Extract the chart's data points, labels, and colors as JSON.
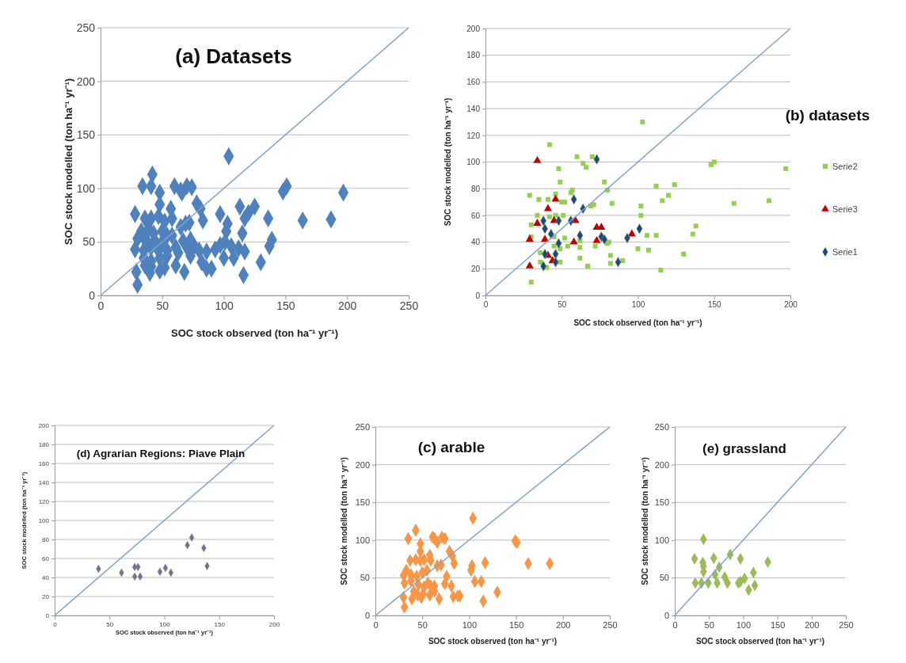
{
  "chart_data": [
    {
      "type": "scatter",
      "title": "(a) Datasets",
      "xlabel": "SOC stock observed (ton ha⁻¹ yr⁻¹)",
      "ylabel": "SOC stock modelled (ton ha⁻¹ yr⁻¹)",
      "xlim": [
        0,
        250
      ],
      "ylim": [
        0,
        250
      ],
      "xticks": [
        0,
        50,
        100,
        150,
        200,
        250
      ],
      "yticks": [
        0,
        50,
        100,
        150,
        200,
        250
      ],
      "grid": "y",
      "series": [
        {
          "type": "scatter",
          "marker": "diamond",
          "color": "#4f81bd",
          "x": [
            104,
            42,
            34,
            41,
            60,
            65,
            70,
            74,
            66,
            48,
            48,
            78,
            81,
            151,
            148,
            197,
            28,
            36,
            41,
            47,
            52,
            57,
            58,
            65,
            69,
            72,
            83,
            97,
            113,
            125,
            120,
            117,
            136,
            164,
            187,
            103,
            102,
            115,
            33,
            39,
            43,
            50,
            54,
            58,
            30,
            36,
            39,
            44,
            50,
            67,
            73,
            76,
            139,
            137,
            28,
            35,
            41,
            47,
            54,
            61,
            63,
            71,
            73,
            80,
            86,
            93,
            97,
            101,
            106,
            112,
            117,
            35,
            41,
            48,
            54,
            61,
            68,
            82,
            86,
            90,
            100,
            108,
            130,
            116,
            29,
            40,
            48,
            30,
            36,
            41,
            52
          ],
          "values": [
            130,
            113,
            102,
            102,
            102,
            98,
            102,
            101,
            96,
            96,
            85,
            86,
            81,
            102,
            97,
            96,
            76,
            72,
            72,
            74,
            69,
            81,
            72,
            64,
            67,
            68,
            70,
            76,
            83,
            83,
            77,
            72,
            72,
            70,
            71,
            67,
            60,
            58,
            60,
            62,
            58,
            60,
            56,
            56,
            53,
            52,
            48,
            51,
            50,
            51,
            52,
            46,
            52,
            46,
            43,
            42,
            45,
            42,
            42,
            45,
            40,
            43,
            37,
            42,
            41,
            43,
            47,
            50,
            46,
            44,
            41,
            35,
            32,
            35,
            37,
            28,
            22,
            31,
            25,
            25,
            35,
            35,
            31,
            19,
            22,
            21,
            23,
            10,
            28,
            27,
            26
          ]
        },
        {
          "type": "line",
          "marker": "none",
          "line_style": "solid",
          "color": "#7ea3d3",
          "x": [
            0,
            250
          ],
          "values": [
            0,
            250
          ]
        }
      ]
    },
    {
      "type": "scatter",
      "title": "(b) datasets",
      "xlabel": "SOC stock observed (ton ha⁻¹ yr⁻¹)",
      "ylabel": "SOC stock modelled (ton ha⁻¹ yr⁻¹)",
      "xlim": [
        0,
        200
      ],
      "ylim": [
        0,
        200
      ],
      "xticks": [
        0,
        50,
        100,
        150,
        200
      ],
      "yticks": [
        0,
        20,
        40,
        60,
        80,
        100,
        120,
        140,
        160,
        180,
        200
      ],
      "grid": "y",
      "legend": "right",
      "series": [
        {
          "name": "Serie2",
          "type": "scatter",
          "marker": "square",
          "color": "#92d050",
          "x": [
            103,
            42,
            60,
            70,
            64,
            66,
            48,
            148,
            150,
            197,
            49,
            78,
            57,
            56,
            80,
            112,
            124,
            120,
            116,
            29,
            35,
            41,
            46,
            50,
            52,
            69,
            71,
            83,
            163,
            186,
            102,
            102,
            34,
            42,
            46,
            51,
            30,
            30,
            45,
            52,
            62,
            81,
            106,
            112,
            136,
            138,
            45,
            49,
            54,
            62,
            72,
            80,
            100,
            107,
            36,
            36,
            62,
            82,
            82,
            90,
            130,
            49,
            40,
            67,
            115,
            30
          ],
          "values": [
            130,
            113,
            104,
            104,
            99,
            96,
            95,
            98,
            100,
            95,
            85,
            85,
            79,
            77,
            79,
            82,
            83,
            75,
            71,
            75,
            72,
            72,
            76,
            70,
            70,
            67,
            68,
            69,
            69,
            71,
            67,
            60,
            60,
            59,
            60,
            60,
            53,
            44,
            44,
            43,
            41,
            40,
            45,
            45,
            46,
            52,
            37,
            35,
            37,
            36,
            37,
            39,
            35,
            34,
            32,
            25,
            28,
            30,
            24,
            26,
            31,
            25,
            21,
            22,
            19,
            10
          ]
        },
        {
          "name": "Serie3",
          "type": "scatter",
          "marker": "triangle",
          "color": "#c00000",
          "x": [
            34,
            46,
            41,
            34,
            45,
            59,
            73,
            76,
            29,
            39,
            58,
            73,
            96,
            44,
            41,
            29
          ],
          "values": [
            101,
            72,
            65,
            54,
            56,
            56,
            51,
            51,
            42,
            42,
            40,
            41,
            46,
            26,
            30,
            22
          ]
        },
        {
          "name": "Serie1",
          "type": "scatter",
          "marker": "diamond",
          "color": "#1f497d",
          "x": [
            73,
            58,
            64,
            38,
            48,
            56,
            39,
            43,
            48,
            62,
            76,
            78,
            93,
            101,
            39,
            46,
            38,
            46,
            87
          ],
          "values": [
            102,
            72,
            65,
            56,
            56,
            56,
            50,
            46,
            39,
            45,
            44,
            42,
            43,
            50,
            31,
            31,
            22,
            25,
            25
          ]
        },
        {
          "type": "line",
          "marker": "none",
          "line_style": "solid",
          "color": "#7ea3d3",
          "x": [
            0,
            200
          ],
          "values": [
            0,
            200
          ]
        }
      ]
    },
    {
      "type": "scatter",
      "title": "(d) Agrarian Regions: Piave Plain",
      "xlabel": "SOC stock observed (ton ha⁻¹ yr⁻¹)",
      "ylabel": "SOC stock modelled (ton ha⁻¹ yr⁻¹)",
      "xlim": [
        0,
        200
      ],
      "ylim": [
        0,
        200
      ],
      "xticks": [
        0,
        50,
        100,
        150,
        200
      ],
      "yticks": [
        0,
        20,
        40,
        60,
        80,
        100,
        120,
        140,
        160,
        180,
        200
      ],
      "grid": "y",
      "series": [
        {
          "type": "scatter",
          "marker": "diamond",
          "color": "#8064a2",
          "x": [
            40,
            61,
            73,
            76,
            73,
            78,
            96,
            101,
            106,
            121,
            125,
            136,
            139
          ],
          "values": [
            49,
            45,
            51,
            51,
            41,
            41,
            46,
            50,
            45,
            74,
            82,
            71,
            52
          ]
        },
        {
          "type": "line",
          "marker": "none",
          "line_style": "solid",
          "color": "#7ea3d3",
          "x": [
            0,
            200
          ],
          "values": [
            0,
            200
          ]
        }
      ]
    },
    {
      "type": "scatter",
      "title": "(c) arable",
      "xlabel": "SOC stock observed (ton ha⁻¹ yr⁻¹)",
      "ylabel": "SOC stock modelled (ton ha⁻¹ yr⁻¹)",
      "xlim": [
        0,
        250
      ],
      "ylim": [
        0,
        250
      ],
      "xticks": [
        0,
        50,
        100,
        150,
        200,
        250
      ],
      "yticks": [
        0,
        50,
        100,
        150,
        200,
        250
      ],
      "grid": "y",
      "series": [
        {
          "type": "scatter",
          "marker": "diamond",
          "color": "#f79646",
          "x": [
            104,
            43,
            35,
            61,
            63,
            71,
            74,
            66,
            48,
            48,
            79,
            82,
            149,
            151,
            84,
            117,
            163,
            186,
            103,
            102,
            106,
            113,
            130,
            115,
            37,
            43,
            48,
            52,
            58,
            59,
            66,
            70,
            76,
            74,
            81,
            83,
            88,
            90,
            33,
            38,
            44,
            50,
            55,
            30,
            31,
            38,
            46,
            52,
            56,
            59,
            63,
            41,
            45,
            51,
            58,
            63,
            30,
            39,
            49,
            68,
            31
          ],
          "values": [
            129,
            113,
            102,
            104,
            102,
            104,
            102,
            97,
            95,
            85,
            85,
            79,
            99,
            97,
            69,
            70,
            69,
            69,
            66,
            60,
            45,
            45,
            31,
            19,
            73,
            74,
            73,
            74,
            80,
            73,
            66,
            67,
            52,
            42,
            39,
            25,
            26,
            26,
            60,
            54,
            52,
            57,
            60,
            53,
            43,
            46,
            41,
            38,
            43,
            39,
            39,
            32,
            27,
            29,
            27,
            32,
            24,
            22,
            24,
            22,
            11
          ]
        },
        {
          "type": "line",
          "marker": "none",
          "line_style": "solid",
          "color": "#7ea3d3",
          "x": [
            0,
            250
          ],
          "values": [
            0,
            250
          ]
        }
      ]
    },
    {
      "type": "scatter",
      "title": "(e) grassland",
      "xlabel": "SOC stock observed (ton ha⁻¹ yr⁻¹)",
      "ylabel": "SOC stock modelled (ton ha⁻¹ yr⁻¹)",
      "xlim": [
        0,
        250
      ],
      "ylim": [
        0,
        250
      ],
      "xticks": [
        0,
        50,
        100,
        150,
        200,
        250
      ],
      "yticks": [
        0,
        50,
        100,
        150,
        200,
        250
      ],
      "grid": "y",
      "series": [
        {
          "type": "scatter",
          "marker": "diamond",
          "color": "#9bbb59",
          "x": [
            42,
            29,
            57,
            81,
            96,
            136,
            41,
            42,
            42,
            65,
            59,
            73,
            115,
            30,
            39,
            49,
            62,
            77,
            93,
            96,
            102,
            108,
            117
          ],
          "values": [
            101,
            75,
            76,
            81,
            75,
            71,
            70,
            65,
            58,
            64,
            54,
            51,
            57,
            43,
            43,
            43,
            43,
            43,
            43,
            45,
            49,
            34,
            40
          ]
        },
        {
          "type": "line",
          "marker": "none",
          "line_style": "solid",
          "color": "#7ea3d3",
          "x": [
            0,
            250
          ],
          "values": [
            0,
            250
          ]
        }
      ]
    }
  ]
}
